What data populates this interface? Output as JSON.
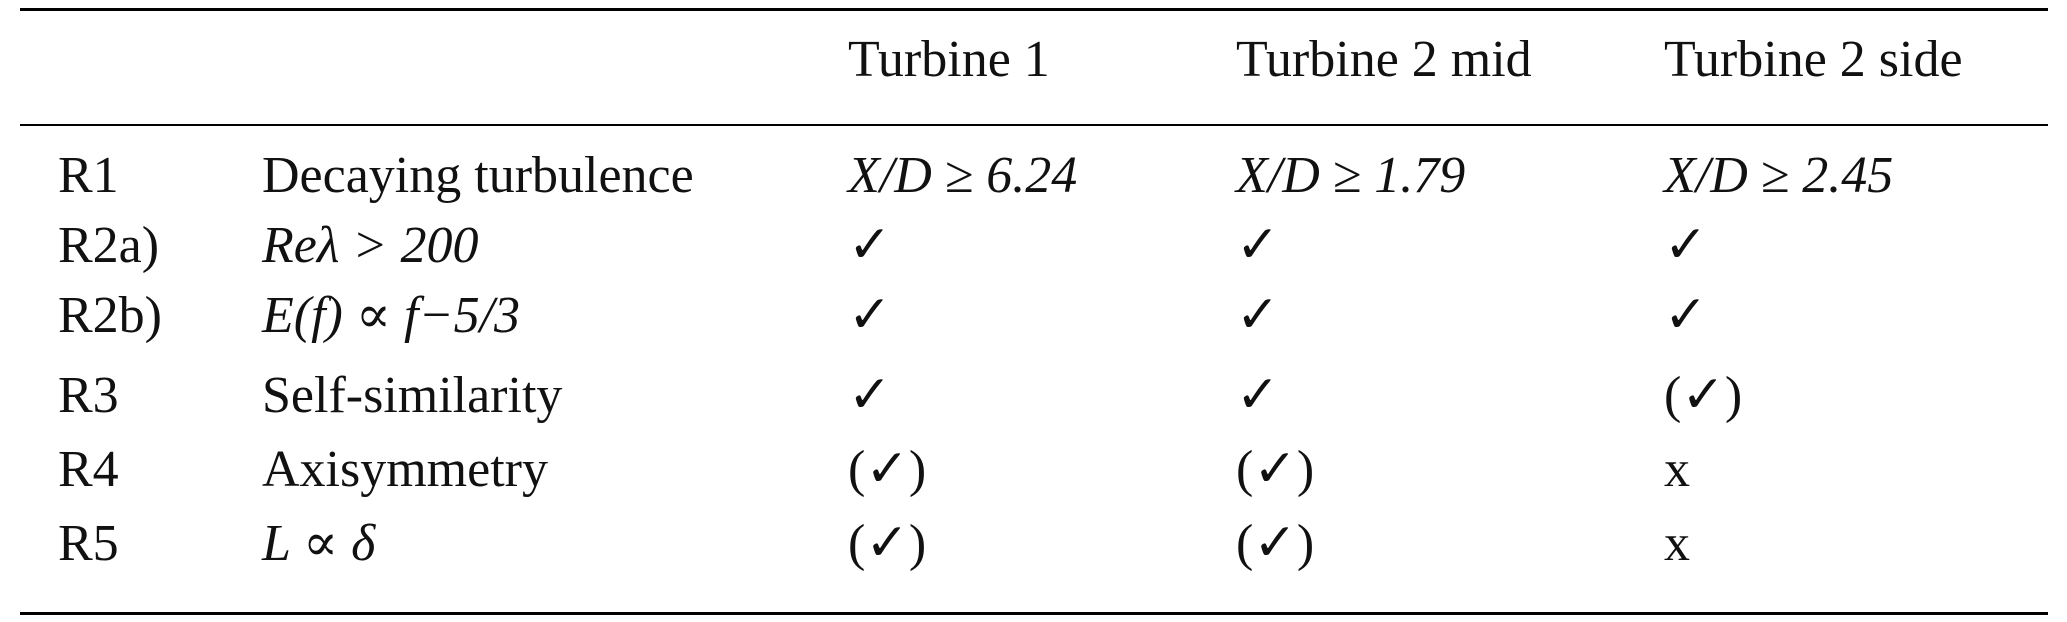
{
  "table": {
    "headers": [
      "",
      "",
      "Turbine 1",
      "Turbine 2 mid",
      "Turbine 2 side"
    ],
    "rows": [
      {
        "id": "R1",
        "requirement": "Decaying turbulence",
        "t1": "X/D ≥ 6.24",
        "t2mid": "X/D ≥ 1.79",
        "t2side": "X/D ≥ 2.45"
      },
      {
        "id": "R2a)",
        "requirement": "Reλ > 200",
        "t1": "✓",
        "t2mid": "✓",
        "t2side": "✓"
      },
      {
        "id": "R2b)",
        "requirement": "E(f) ∝ f−5/3",
        "t1": "✓",
        "t2mid": "✓",
        "t2side": "✓"
      },
      {
        "id": "R3",
        "requirement": "Self-similarity",
        "t1": "✓",
        "t2mid": "✓",
        "t2side": "(✓)"
      },
      {
        "id": "R4",
        "requirement": "Axisymmetry",
        "t1": "(✓)",
        "t2mid": "(✓)",
        "t2side": "x"
      },
      {
        "id": "R5",
        "requirement": "L ∝ δ",
        "t1": "(✓)",
        "t2mid": "(✓)",
        "t2side": "x"
      }
    ]
  }
}
